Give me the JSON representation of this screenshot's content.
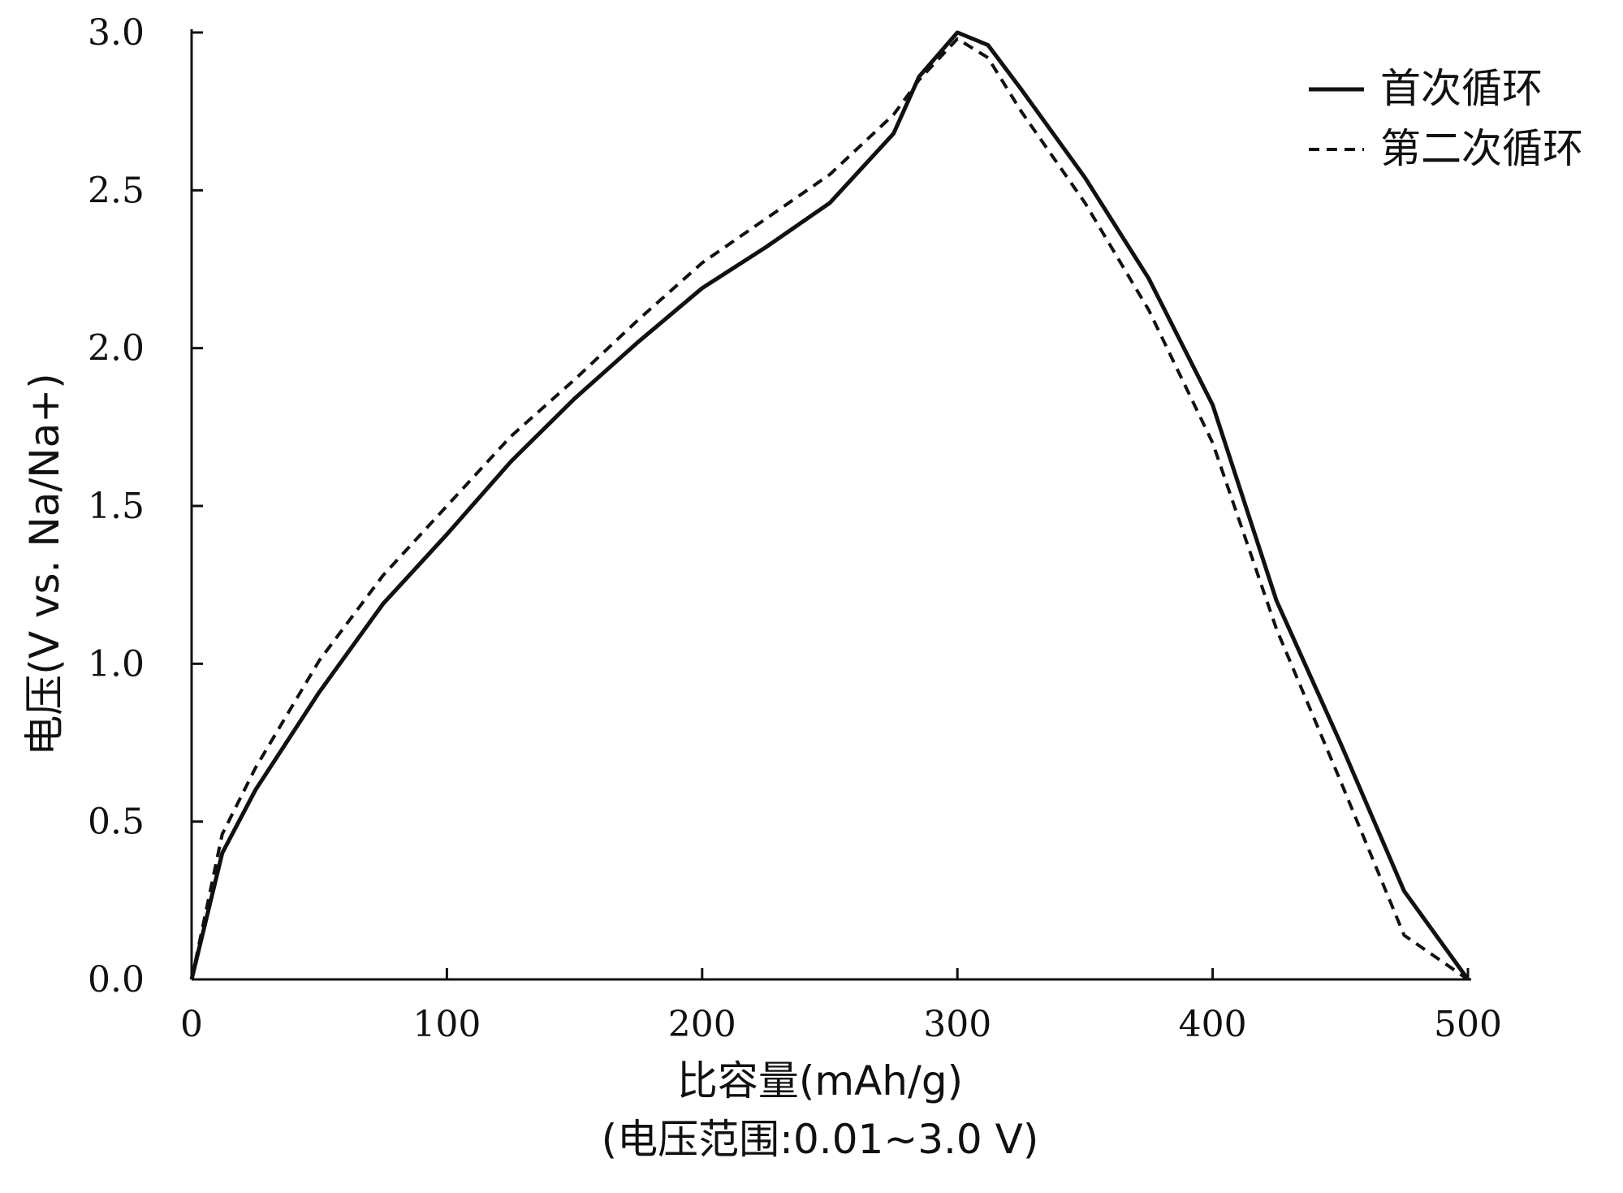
{
  "chart_data": {
    "type": "line",
    "xlabel": "比容量(mAh/g)",
    "xlabel_note": "(电压范围:0.01~3.0 V)",
    "ylabel": "电压(V vs. Na/Na+)",
    "xlim": [
      0,
      500
    ],
    "ylim": [
      0,
      3.0
    ],
    "x_ticks": [
      "0",
      "100",
      "200",
      "300",
      "400",
      "500"
    ],
    "y_ticks": [
      "0.0",
      "0.5",
      "1.0",
      "1.5",
      "2.0",
      "2.5",
      "3.0"
    ],
    "grid": false,
    "legend_position": "top-right",
    "series": [
      {
        "name": "首次循环",
        "style": "solid",
        "color": "#111111",
        "x": [
          0,
          12,
          25,
          50,
          75,
          100,
          125,
          150,
          175,
          200,
          225,
          250,
          275,
          285,
          300,
          312,
          325,
          350,
          375,
          400,
          425,
          450,
          475,
          500
        ],
        "y": [
          0.0,
          0.4,
          0.6,
          0.91,
          1.19,
          1.41,
          1.64,
          1.84,
          2.02,
          2.19,
          2.32,
          2.46,
          2.68,
          2.86,
          3.0,
          2.96,
          2.82,
          2.54,
          2.22,
          1.82,
          1.2,
          0.75,
          0.28,
          0.0
        ]
      },
      {
        "name": "第二次循环",
        "style": "dashed",
        "color": "#111111",
        "x": [
          0,
          12,
          25,
          50,
          75,
          100,
          125,
          150,
          175,
          200,
          225,
          250,
          275,
          285,
          300,
          312,
          325,
          350,
          375,
          400,
          425,
          450,
          475,
          500
        ],
        "y": [
          0.0,
          0.46,
          0.67,
          1.01,
          1.28,
          1.5,
          1.72,
          1.9,
          2.09,
          2.27,
          2.41,
          2.55,
          2.74,
          2.85,
          2.98,
          2.92,
          2.75,
          2.46,
          2.12,
          1.7,
          1.11,
          0.63,
          0.14,
          0.0
        ]
      }
    ]
  }
}
